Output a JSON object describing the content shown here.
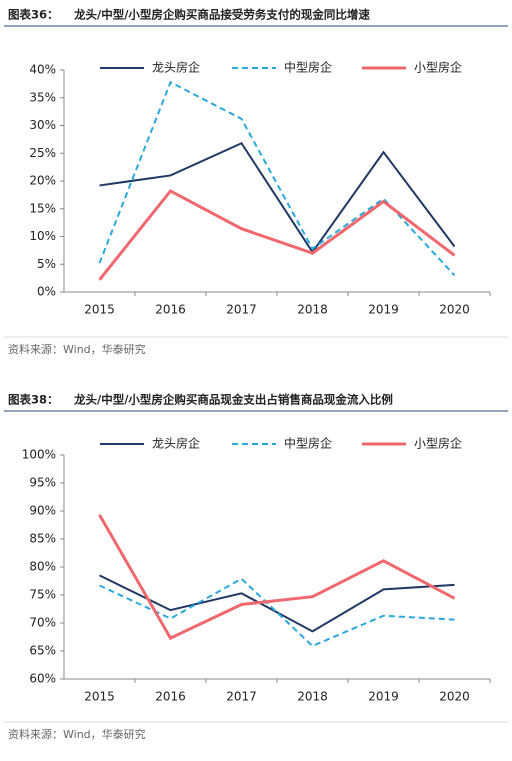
{
  "chart_data": [
    {
      "type": "line",
      "label": "图表36：",
      "title": "龙头/中型/小型房企购买商品接受劳务支付的现金同比增速",
      "source": "资料来源：Wind，华泰研究",
      "categories": [
        "2015",
        "2016",
        "2017",
        "2018",
        "2019",
        "2020"
      ],
      "series": [
        {
          "name": "龙头房企",
          "color": "#1f3864",
          "dash": false,
          "values": [
            19.2,
            21,
            26.8,
            7.2,
            25.2,
            8.2
          ]
        },
        {
          "name": "中型房企",
          "color": "#29a8df",
          "dash": true,
          "values": [
            5.2,
            37.8,
            31.2,
            7.8,
            16.8,
            3
          ]
        },
        {
          "name": "小型房企",
          "color": "#f0686e",
          "dash": false,
          "values": [
            2.2,
            18.2,
            11.4,
            7.0,
            16.3,
            6.6
          ]
        }
      ],
      "ylim": [
        0,
        40
      ],
      "yticks": [
        {
          "value": 0,
          "label": "0%"
        },
        {
          "value": 5,
          "label": "5%"
        },
        {
          "value": 10,
          "label": "10%"
        },
        {
          "value": 15,
          "label": "15%"
        },
        {
          "value": 20,
          "label": "20%"
        },
        {
          "value": 25,
          "label": "25%"
        },
        {
          "value": 30,
          "label": "30%"
        },
        {
          "value": 35,
          "label": "35%"
        },
        {
          "value": 40,
          "label": "40%"
        }
      ]
    },
    {
      "type": "line",
      "label": "图表38：",
      "title": "龙头/中型/小型房企购买商品现金支出占销售商品现金流入比例",
      "source": "资料来源：Wind，华泰研究",
      "categories": [
        "2015",
        "2016",
        "2017",
        "2018",
        "2019",
        "2020"
      ],
      "series": [
        {
          "name": "龙头房企",
          "color": "#1f3864",
          "dash": false,
          "values": [
            78.5,
            72.3,
            75.3,
            68.5,
            76,
            76.8
          ]
        },
        {
          "name": "中型房企",
          "color": "#29a8df",
          "dash": true,
          "values": [
            76.7,
            70.8,
            77.9,
            65.9,
            71.3,
            70.6
          ]
        },
        {
          "name": "小型房企",
          "color": "#f0686e",
          "dash": false,
          "values": [
            89.3,
            67.3,
            73.3,
            74.7,
            81.1,
            74.4
          ]
        }
      ],
      "ylim": [
        60,
        100
      ],
      "yticks": [
        {
          "value": 60,
          "label": "60%"
        },
        {
          "value": 65,
          "label": "65%"
        },
        {
          "value": 70,
          "label": "70%"
        },
        {
          "value": 75,
          "label": "75%"
        },
        {
          "value": 80,
          "label": "80%"
        },
        {
          "value": 85,
          "label": "85%"
        },
        {
          "value": 90,
          "label": "90%"
        },
        {
          "value": 95,
          "label": "95%"
        },
        {
          "value": 100,
          "label": "100%"
        }
      ]
    }
  ]
}
